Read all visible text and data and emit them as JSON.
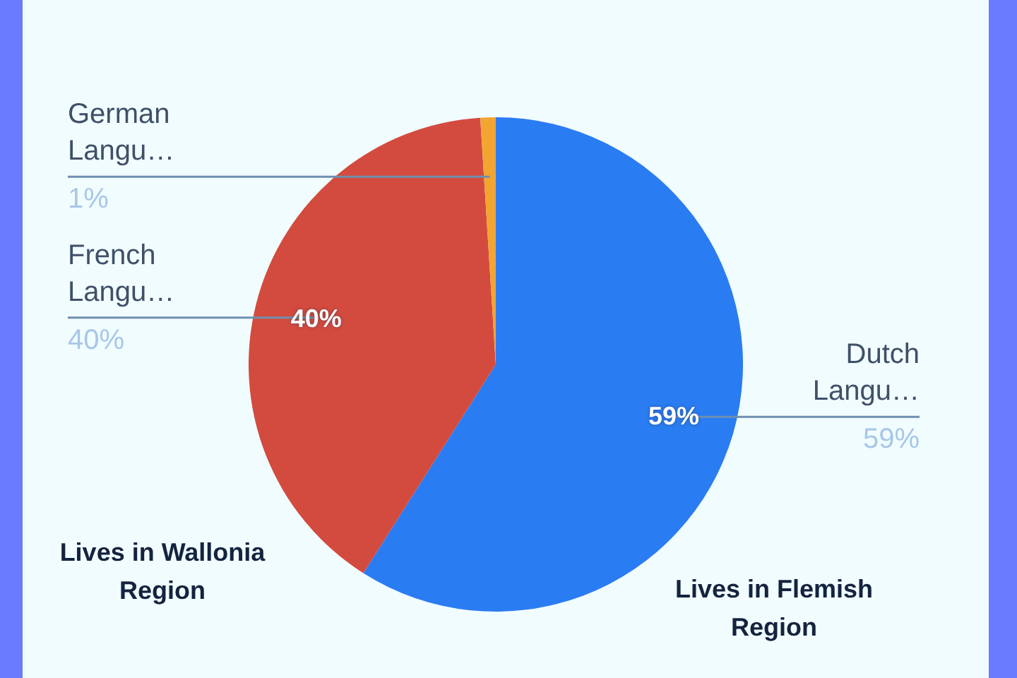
{
  "chart_data": {
    "type": "pie",
    "categories": [
      "Dutch Langu…",
      "French Langu…",
      "German Langu…"
    ],
    "values": [
      59,
      40,
      1
    ],
    "colors": [
      "#2a7cf2",
      "#d34b3e",
      "#f2a531"
    ],
    "value_labels": [
      "59%",
      "40%",
      "1%"
    ],
    "annotations": [
      "Lives in Wallonia Region",
      "Lives in Flemish Region"
    ]
  }
}
